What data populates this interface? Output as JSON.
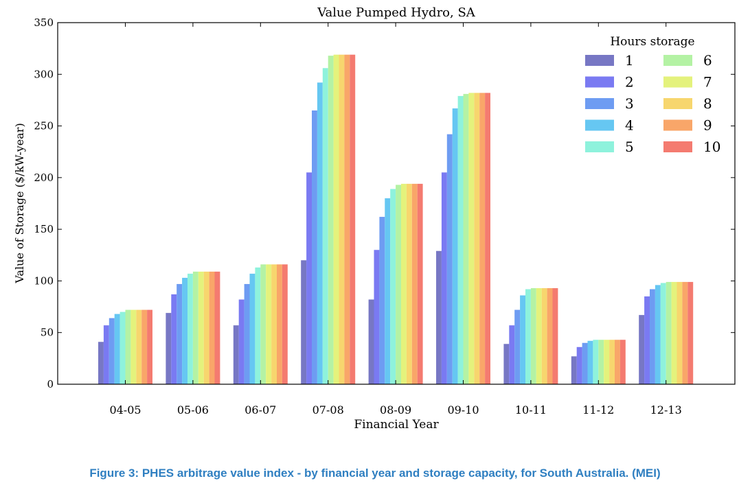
{
  "chart_data": {
    "type": "bar",
    "title": "Value Pumped Hydro, SA",
    "xlabel": "Financial Year",
    "ylabel": "Value of Storage ($/kW-year)",
    "ylim": [
      0,
      350
    ],
    "yticks": [
      0,
      50,
      100,
      150,
      200,
      250,
      300,
      350
    ],
    "grid": false,
    "legend_title": "Hours storage",
    "legend_position": "top-right",
    "categories": [
      "04-05",
      "05-06",
      "06-07",
      "07-08",
      "08-09",
      "09-10",
      "10-11",
      "11-12",
      "12-13"
    ],
    "series": [
      {
        "name": "1",
        "color": "#7777c4",
        "values": [
          41,
          69,
          57,
          120,
          82,
          129,
          39,
          27,
          67
        ]
      },
      {
        "name": "2",
        "color": "#7a7af2",
        "values": [
          57,
          87,
          82,
          205,
          130,
          205,
          57,
          36,
          85
        ]
      },
      {
        "name": "3",
        "color": "#6e9cf2",
        "values": [
          64,
          97,
          97,
          265,
          162,
          242,
          72,
          40,
          92
        ]
      },
      {
        "name": "4",
        "color": "#66c7f2",
        "values": [
          68,
          103,
          107,
          292,
          180,
          267,
          86,
          42,
          96
        ]
      },
      {
        "name": "5",
        "color": "#8ef2dc",
        "values": [
          70,
          107,
          113,
          306,
          189,
          279,
          92,
          43,
          98
        ]
      },
      {
        "name": "6",
        "color": "#b4f2a4",
        "values": [
          72,
          109,
          116,
          318,
          193,
          281,
          93,
          43,
          99
        ]
      },
      {
        "name": "7",
        "color": "#e4f27c",
        "values": [
          72,
          109,
          116,
          319,
          194,
          282,
          93,
          43,
          99
        ]
      },
      {
        "name": "8",
        "color": "#f7d66e",
        "values": [
          72,
          109,
          116,
          319,
          194,
          282,
          93,
          43,
          99
        ]
      },
      {
        "name": "9",
        "color": "#f9a669",
        "values": [
          72,
          109,
          116,
          319,
          194,
          282,
          93,
          43,
          99
        ]
      },
      {
        "name": "10",
        "color": "#f47b70",
        "values": [
          72,
          109,
          116,
          319,
          194,
          282,
          93,
          43,
          99
        ]
      }
    ]
  },
  "caption": "Figure 3: PHES arbitrage value index - by financial year and storage capacity, for South Australia. (MEI)"
}
